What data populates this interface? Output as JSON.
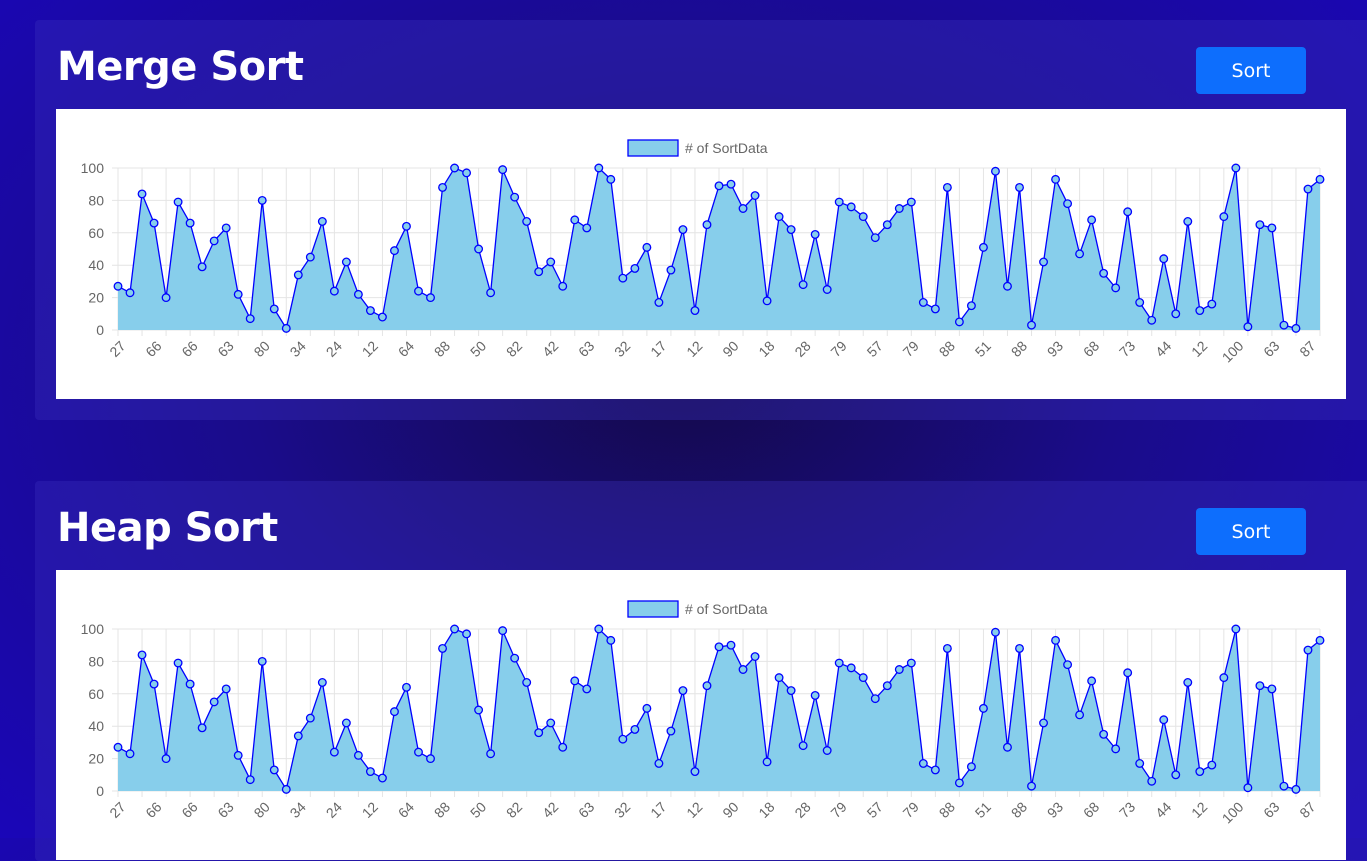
{
  "sections": [
    {
      "title": "Merge Sort",
      "button": "Sort"
    },
    {
      "title": "Heap Sort",
      "button": "Sort"
    }
  ],
  "chart_data": {
    "type": "line",
    "fill": true,
    "legend": {
      "label": "# of SortData",
      "placement": "top"
    },
    "series_color": "#0000ff",
    "fill_color": "#87ceeb",
    "ylim": [
      0,
      100
    ],
    "yticks": [
      0,
      20,
      40,
      60,
      80,
      100
    ],
    "grid": true,
    "values": [
      27,
      23,
      84,
      66,
      20,
      79,
      66,
      39,
      55,
      63,
      22,
      7,
      80,
      13,
      1,
      34,
      45,
      67,
      24,
      42,
      22,
      12,
      8,
      49,
      64,
      24,
      20,
      88,
      100,
      97,
      50,
      23,
      99,
      82,
      67,
      36,
      42,
      27,
      68,
      63,
      100,
      93,
      32,
      38,
      51,
      17,
      37,
      62,
      12,
      65,
      89,
      90,
      75,
      83,
      18,
      70,
      62,
      28,
      59,
      25,
      79,
      76,
      70,
      57,
      65,
      75,
      79,
      17,
      13,
      88,
      5,
      15,
      51,
      98,
      27,
      88,
      3,
      42,
      93,
      78,
      47,
      68,
      35,
      26,
      73,
      17,
      6,
      44,
      10,
      67,
      12,
      16,
      70,
      100,
      2,
      65,
      63,
      3,
      1,
      87,
      93
    ]
  }
}
